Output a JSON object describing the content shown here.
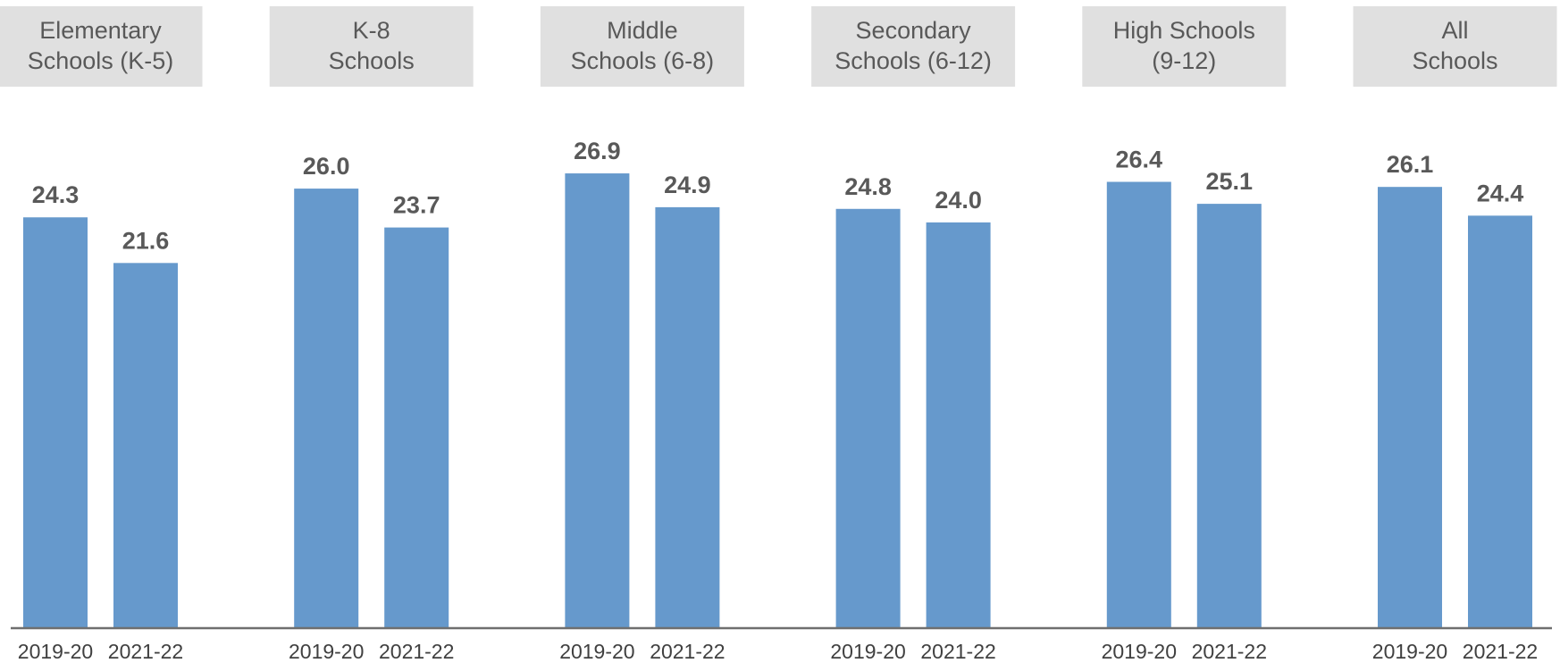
{
  "chart_data": {
    "type": "bar",
    "title": "",
    "xlabel": "",
    "ylabel": "",
    "ylim": [
      0,
      30
    ],
    "grid": false,
    "legend": "none",
    "bar_color": "#6699CC",
    "header_box_color": "#E0E0E0",
    "baseline_color": "#6F6F6F",
    "label_color": "#595959",
    "groups": [
      {
        "name": [
          "Elementary",
          "Schools (K-5)"
        ],
        "categories": [
          "2019-20",
          "2021-22"
        ],
        "values": [
          24.3,
          21.6
        ],
        "labels": [
          "24.3",
          "21.6"
        ]
      },
      {
        "name": [
          "K-8",
          "Schools"
        ],
        "categories": [
          "2019-20",
          "2021-22"
        ],
        "values": [
          26.0,
          23.7
        ],
        "labels": [
          "26.0",
          "23.7"
        ]
      },
      {
        "name": [
          "Middle",
          "Schools (6-8)"
        ],
        "categories": [
          "2019-20",
          "2021-22"
        ],
        "values": [
          26.9,
          24.9
        ],
        "labels": [
          "26.9",
          "24.9"
        ]
      },
      {
        "name": [
          "Secondary",
          "Schools (6-12)"
        ],
        "categories": [
          "2019-20",
          "2021-22"
        ],
        "values": [
          24.8,
          24.0
        ],
        "labels": [
          "24.8",
          "24.0"
        ]
      },
      {
        "name": [
          "High Schools",
          "(9-12)"
        ],
        "categories": [
          "2019-20",
          "2021-22"
        ],
        "values": [
          26.4,
          25.1
        ],
        "labels": [
          "26.4",
          "25.1"
        ]
      },
      {
        "name": [
          "All",
          "Schools"
        ],
        "categories": [
          "2019-20",
          "2021-22"
        ],
        "values": [
          26.1,
          24.4
        ],
        "labels": [
          "26.1",
          "24.4"
        ]
      }
    ]
  }
}
